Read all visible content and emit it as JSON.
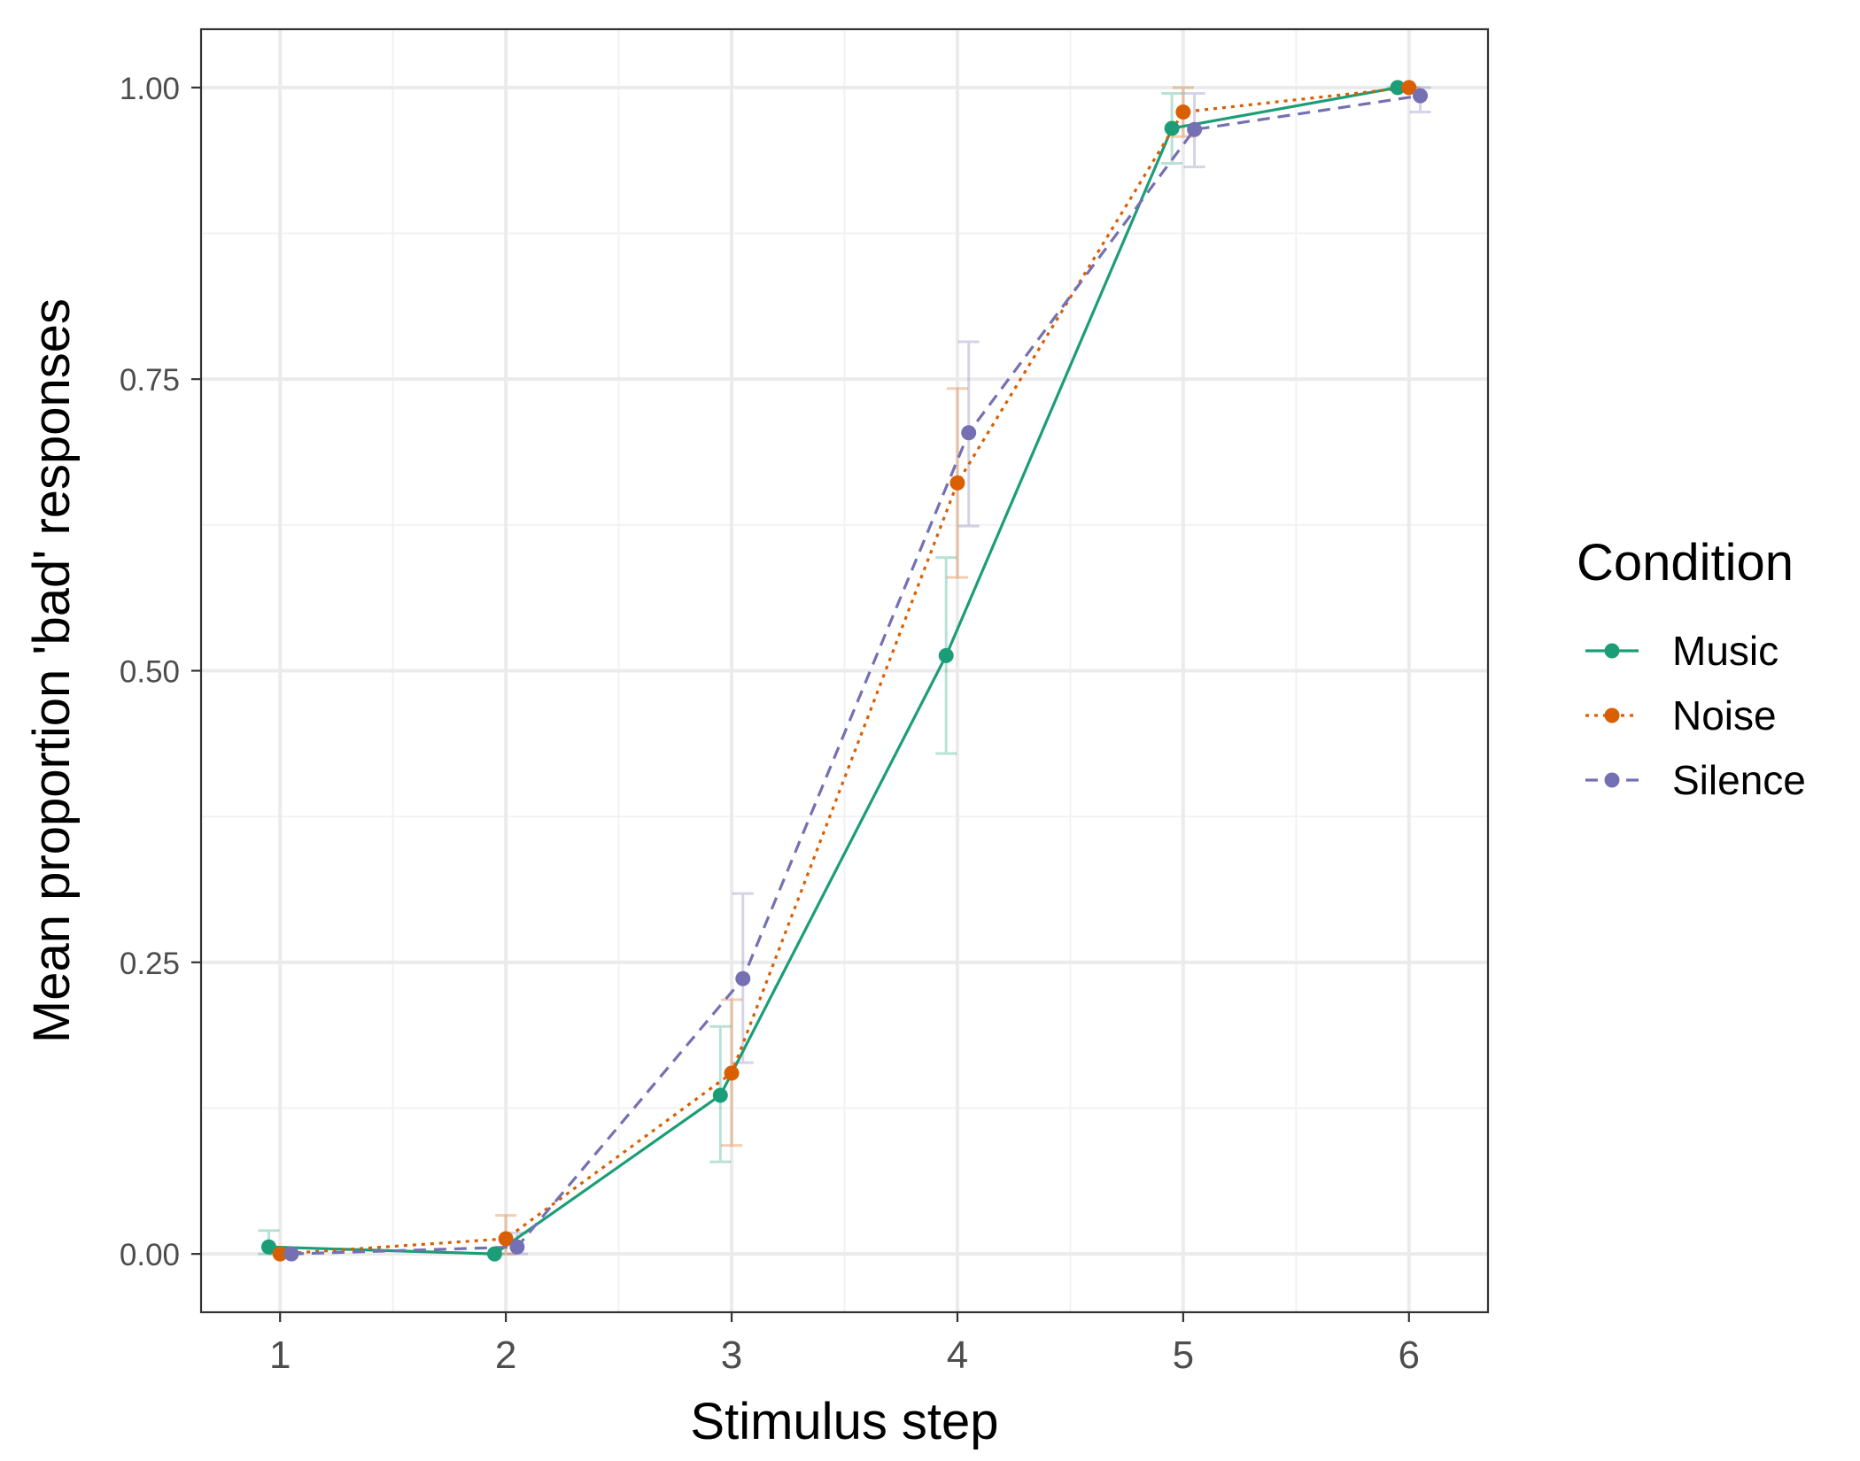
{
  "chart_data": {
    "type": "line",
    "xlabel": "Stimulus step",
    "ylabel": "Mean proportion 'bad' responses",
    "x": [
      1,
      2,
      3,
      4,
      5,
      6
    ],
    "xlim": [
      0.65,
      6.35
    ],
    "ylim": [
      -0.05,
      1.05
    ],
    "x_ticks": [
      1,
      2,
      3,
      4,
      5,
      6
    ],
    "x_tick_labels": [
      "1",
      "2",
      "3",
      "4",
      "5",
      "6"
    ],
    "y_ticks": [
      0,
      0.25,
      0.5,
      0.75,
      1.0
    ],
    "y_tick_labels": [
      "0.00",
      "0.25",
      "0.50",
      "0.75",
      "1.00"
    ],
    "grid": true,
    "error_bars": true,
    "legend": {
      "title": "Condition",
      "position": "right"
    },
    "series": [
      {
        "name": "Music",
        "color": "#1b9e77",
        "dash": "solid",
        "dodge": -0.05,
        "values": [
          0.006,
          0.0,
          0.136,
          0.513,
          0.965,
          1.0
        ],
        "lower": [
          0.0,
          0.0,
          0.079,
          0.429,
          0.935,
          1.0
        ],
        "upper": [
          0.02,
          0.0,
          0.195,
          0.597,
          0.995,
          1.0
        ]
      },
      {
        "name": "Noise",
        "color": "#d95f02",
        "dash": "dotted",
        "dodge": 0.0,
        "values": [
          0.0,
          0.013,
          0.155,
          0.661,
          0.979,
          1.0
        ],
        "lower": [
          0.0,
          0.0,
          0.093,
          0.58,
          0.958,
          1.0
        ],
        "upper": [
          0.0,
          0.033,
          0.218,
          0.742,
          1.0,
          1.0
        ]
      },
      {
        "name": "Silence",
        "color": "#7570b3",
        "dash": "dashed",
        "dodge": 0.05,
        "values": [
          0.0,
          0.006,
          0.236,
          0.704,
          0.964,
          0.993
        ],
        "lower": [
          0.0,
          0.0,
          0.164,
          0.624,
          0.932,
          0.979
        ],
        "upper": [
          0.0,
          0.018,
          0.309,
          0.782,
          0.995,
          1.0
        ]
      }
    ]
  }
}
